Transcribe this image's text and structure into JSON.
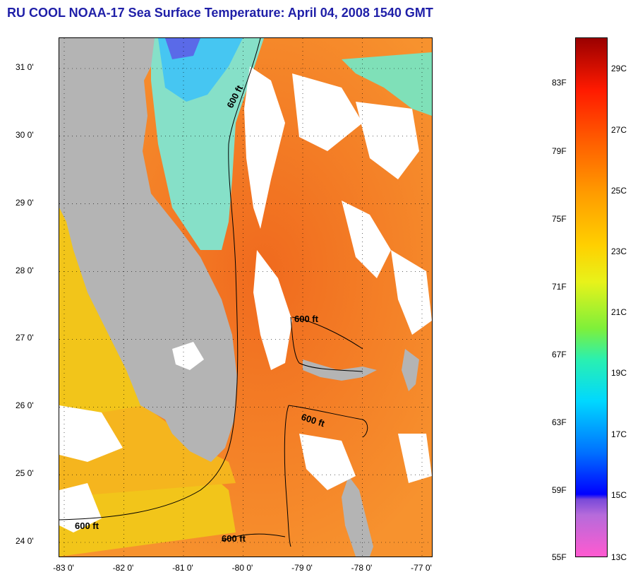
{
  "title": "RU COOL  NOAA-17  Sea Surface Temperature:  April 04, 2008 1540 GMT",
  "map": {
    "lat_labels": [
      "31 0'",
      "30 0'",
      "29 0'",
      "28 0'",
      "27 0'",
      "26 0'",
      "25 0'",
      "24 0'"
    ],
    "lat_values": [
      31,
      30,
      29,
      28,
      27,
      26,
      25,
      24
    ],
    "lon_labels": [
      "-83 0'",
      "-82 0'",
      "-81 0'",
      "-80 0'",
      "-79 0'",
      "-78 0'",
      "-77 0'"
    ],
    "lon_values": [
      -83,
      -82,
      -81,
      -80,
      -79,
      -78,
      -77
    ],
    "contour_label": "600 ft",
    "colors": {
      "land": "#b4b4b4",
      "cloud": "#ffffff",
      "gulf_stream": "#f7822a",
      "shelf": "#f4c21a",
      "cold_coastal": "#5ad6f0",
      "frame": "#000000"
    }
  },
  "colorbar": {
    "fahrenheit_labels": [
      "83F",
      "79F",
      "75F",
      "71F",
      "67F",
      "63F",
      "59F",
      "55F"
    ],
    "celsius_labels": [
      "29C",
      "27C",
      "25C",
      "23C",
      "21C",
      "19C",
      "17C",
      "15C",
      "13C"
    ]
  }
}
